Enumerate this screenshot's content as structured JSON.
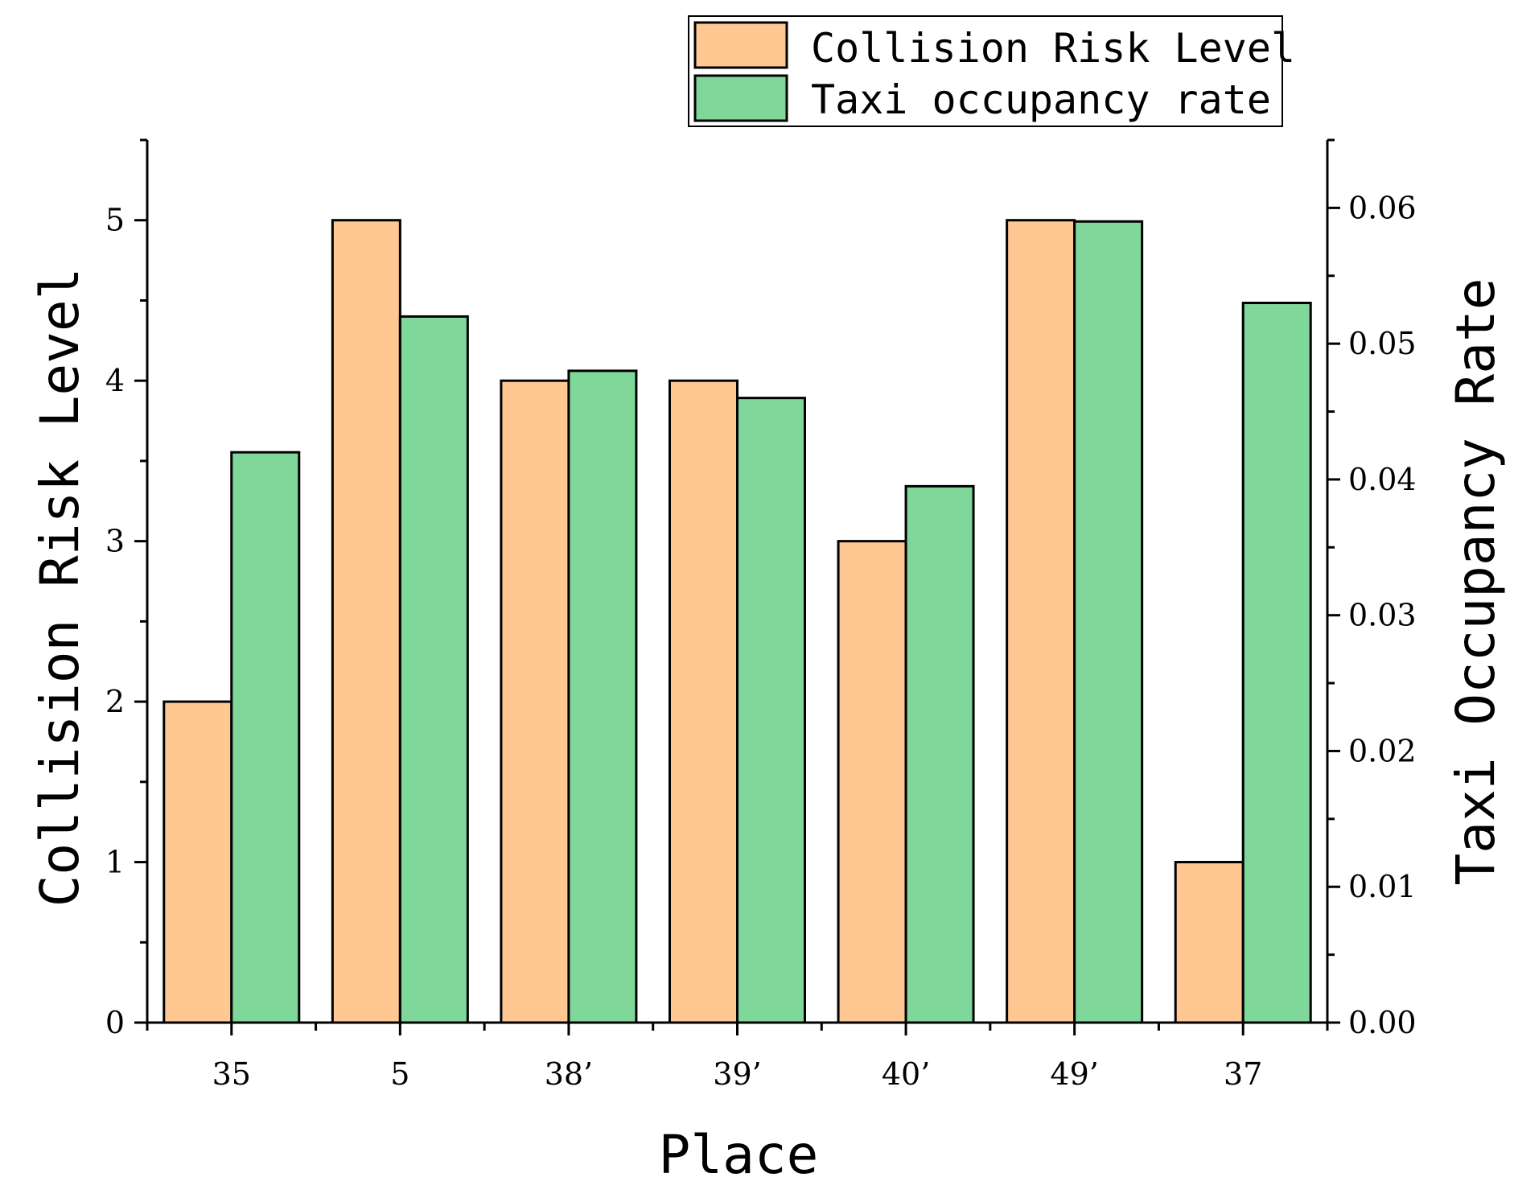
{
  "colors": {
    "collision": "#FFC893",
    "occupancy": "#7FD89A",
    "axis": "#000000"
  },
  "chart_data": {
    "type": "bar",
    "title": "",
    "xlabel": "Place",
    "ylabel_left": "Collision Risk Level",
    "ylabel_right": "Taxi Occupancy Rate",
    "categories": [
      "35",
      "5",
      "38’",
      "39’",
      "40’",
      "49’",
      "37"
    ],
    "series": [
      {
        "name": "Collision Risk Level",
        "axis": "left",
        "values": [
          2,
          5,
          4,
          4,
          3,
          5,
          1
        ]
      },
      {
        "name": "Taxi occupancy rate",
        "axis": "right",
        "values": [
          0.042,
          0.052,
          0.048,
          0.046,
          0.0395,
          0.059,
          0.053
        ]
      }
    ],
    "ylim_left": [
      0,
      5.5
    ],
    "ylim_right": [
      0,
      0.065
    ],
    "yticks_left": [
      "0",
      "1",
      "2",
      "3",
      "4",
      "5"
    ],
    "yticks_right": [
      "0.00",
      "0.01",
      "0.02",
      "0.03",
      "0.04",
      "0.05",
      "0.06"
    ],
    "legend_position": "top-right",
    "grid": false
  }
}
